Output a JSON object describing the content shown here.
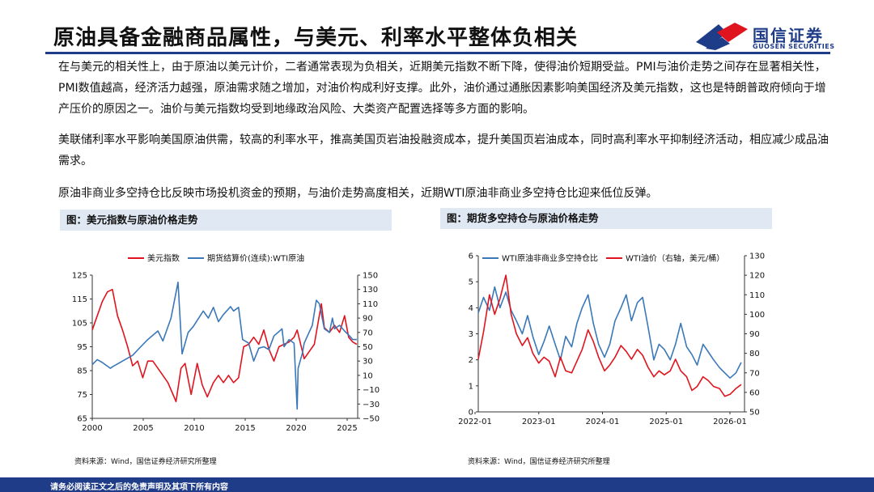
{
  "header": {
    "title": "原油具备金融商品属性，与美元、利率水平整体负相关"
  },
  "logo": {
    "cn": "国信证券",
    "en": "GUOSEN SECURITIES"
  },
  "body": {
    "p1": "在与美元的相关性上，由于原油以美元计价，二者通常表现为负相关，近期美元指数不断下降，使得油价短期受益。PMI与油价走势之间存在显著相关性，PMI数值越高，经济活力越强，原油需求随之增加，对油价构成利好支撑。此外，油价通过通胀因素影响美国经济及美元指数，这也是特朗普政府倾向于增产压价的原因之一。油价与美元指数均受到地缘政治风险、大类资产配置选择等多方面的影响。",
    "p2": "美联储利率水平影响美国原油供需，较高的利率水平，推高美国页岩油投融资成本，提升美国页岩油成本，同时高利率水平抑制经济活动，相应减少成品油需求。",
    "p3": "原油非商业多空持仓比反映市场投机资金的预期，与油价走势高度相关，近期WTI原油非商业多空持仓比迎来低位反弹。"
  },
  "footer": {
    "disclaimer": "请务必阅读正文之后的免责声明及其项下所有内容"
  },
  "colors": {
    "red": "#e0141e",
    "blue": "#3a78b8",
    "navy": "#1f3c88"
  },
  "chart_data": [
    {
      "type": "line",
      "caption": "图：美元指数与原油价格走势",
      "source": "资料来源：Wind，国信证券经济研究所整理",
      "x_ticks": [
        "2000",
        "2005",
        "2010",
        "2015",
        "2020",
        "2025"
      ],
      "xlim": [
        2000,
        2026.3
      ],
      "y_left": {
        "ticks": [
          "125",
          "115",
          "105",
          "95",
          "85",
          "75",
          "65"
        ],
        "ylim": [
          65,
          125
        ]
      },
      "y_right": {
        "ticks": [
          "150",
          "130",
          "110",
          "90",
          "70",
          "50",
          "30",
          "10",
          "−10",
          "−30",
          "−50"
        ],
        "ylim": [
          -50,
          150
        ]
      },
      "series": [
        {
          "name": "美元指数",
          "color": "#e0141e",
          "axis": "left",
          "points": [
            [
              2000,
              102
            ],
            [
              2000.5,
              108
            ],
            [
              2001,
              114
            ],
            [
              2001.5,
              118
            ],
            [
              2002,
              119
            ],
            [
              2002.5,
              108
            ],
            [
              2003,
              102
            ],
            [
              2003.5,
              95
            ],
            [
              2004,
              87
            ],
            [
              2004.5,
              89
            ],
            [
              2005,
              82
            ],
            [
              2005.5,
              89
            ],
            [
              2006,
              89
            ],
            [
              2006.5,
              86
            ],
            [
              2007,
              83
            ],
            [
              2007.5,
              80
            ],
            [
              2008,
              75
            ],
            [
              2008.3,
              72
            ],
            [
              2008.8,
              86
            ],
            [
              2009.2,
              88
            ],
            [
              2009.8,
              75
            ],
            [
              2010.4,
              88
            ],
            [
              2010.9,
              79
            ],
            [
              2011.4,
              74
            ],
            [
              2012,
              80
            ],
            [
              2012.5,
              83
            ],
            [
              2013,
              80
            ],
            [
              2013.5,
              83
            ],
            [
              2014,
              80
            ],
            [
              2014.5,
              82
            ],
            [
              2015,
              95
            ],
            [
              2015.5,
              96
            ],
            [
              2016,
              99
            ],
            [
              2016.5,
              96
            ],
            [
              2017,
              102
            ],
            [
              2017.5,
              94
            ],
            [
              2018,
              89
            ],
            [
              2018.5,
              95
            ],
            [
              2019,
              96
            ],
            [
              2019.5,
              97
            ],
            [
              2020,
              99
            ],
            [
              2020.3,
              102
            ],
            [
              2021,
              90
            ],
            [
              2021.5,
              93
            ],
            [
              2022,
              96
            ],
            [
              2022.7,
              113
            ],
            [
              2023,
              103
            ],
            [
              2023.5,
              101
            ],
            [
              2024,
              104
            ],
            [
              2024.5,
              101
            ],
            [
              2025,
              108
            ],
            [
              2025.4,
              99
            ],
            [
              2025.8,
              97
            ],
            [
              2026.2,
              96
            ]
          ]
        },
        {
          "name": "期货结算价(连续):WTI原油",
          "color": "#3a78b8",
          "axis": "right",
          "points": [
            [
              2000,
              25
            ],
            [
              2000.5,
              32
            ],
            [
              2001,
              28
            ],
            [
              2001.8,
              20
            ],
            [
              2002,
              22
            ],
            [
              2003,
              30
            ],
            [
              2004,
              38
            ],
            [
              2004.8,
              50
            ],
            [
              2005.5,
              60
            ],
            [
              2006.5,
              72
            ],
            [
              2007,
              58
            ],
            [
              2007.8,
              90
            ],
            [
              2008.5,
              140
            ],
            [
              2008.9,
              40
            ],
            [
              2009.5,
              70
            ],
            [
              2010,
              78
            ],
            [
              2011,
              100
            ],
            [
              2011.5,
              90
            ],
            [
              2012,
              105
            ],
            [
              2012.5,
              85
            ],
            [
              2013,
              95
            ],
            [
              2013.7,
              106
            ],
            [
              2014,
              100
            ],
            [
              2014.5,
              105
            ],
            [
              2014.9,
              60
            ],
            [
              2015.5,
              55
            ],
            [
              2016,
              30
            ],
            [
              2016.5,
              48
            ],
            [
              2017,
              50
            ],
            [
              2017.5,
              46
            ],
            [
              2018,
              65
            ],
            [
              2018.8,
              75
            ],
            [
              2019,
              50
            ],
            [
              2019.5,
              60
            ],
            [
              2020,
              55
            ],
            [
              2020.3,
              -37
            ],
            [
              2020.4,
              20
            ],
            [
              2020.8,
              40
            ],
            [
              2021,
              55
            ],
            [
              2021.8,
              80
            ],
            [
              2022.2,
              115
            ],
            [
              2022.5,
              110
            ],
            [
              2023,
              75
            ],
            [
              2023.5,
              70
            ],
            [
              2023.8,
              90
            ],
            [
              2024,
              75
            ],
            [
              2024.5,
              80
            ],
            [
              2025,
              72
            ],
            [
              2025.5,
              65
            ],
            [
              2025.8,
              60
            ],
            [
              2026.2,
              60
            ]
          ]
        }
      ]
    },
    {
      "type": "line",
      "caption": "图：期货多空持仓与原油价格走势",
      "source": "资料来源：Wind，国信证券经济研究所整理",
      "x_ticks": [
        "2022-01",
        "2023-01",
        "2024-01",
        "2025-01",
        "2026-01"
      ],
      "xlim": [
        2022.0,
        2026.05
      ],
      "y_left": {
        "ticks": [
          "6",
          "5",
          "4",
          "3",
          "2",
          "1",
          "0"
        ],
        "ylim": [
          0,
          6
        ]
      },
      "y_right": {
        "ticks": [
          "130",
          "120",
          "110",
          "100",
          "90",
          "80",
          "70",
          "60",
          "50"
        ],
        "ylim": [
          50,
          130
        ]
      },
      "series": [
        {
          "name": "WTI原油非商业多空持仓比",
          "color": "#3a78b8",
          "axis": "left",
          "points": [
            [
              2022.0,
              3.8
            ],
            [
              2022.08,
              4.4
            ],
            [
              2022.17,
              3.9
            ],
            [
              2022.25,
              4.8
            ],
            [
              2022.33,
              4.0
            ],
            [
              2022.42,
              4.6
            ],
            [
              2022.5,
              3.9
            ],
            [
              2022.58,
              3.5
            ],
            [
              2022.67,
              3.0
            ],
            [
              2022.75,
              3.7
            ],
            [
              2022.83,
              2.9
            ],
            [
              2022.92,
              2.2
            ],
            [
              2023.0,
              2.7
            ],
            [
              2023.08,
              3.3
            ],
            [
              2023.17,
              2.6
            ],
            [
              2023.25,
              2.0
            ],
            [
              2023.33,
              2.9
            ],
            [
              2023.42,
              2.5
            ],
            [
              2023.5,
              3.4
            ],
            [
              2023.58,
              4.0
            ],
            [
              2023.67,
              4.5
            ],
            [
              2023.75,
              3.4
            ],
            [
              2023.83,
              2.6
            ],
            [
              2023.92,
              2.1
            ],
            [
              2024.0,
              2.6
            ],
            [
              2024.08,
              3.5
            ],
            [
              2024.17,
              4.0
            ],
            [
              2024.25,
              4.5
            ],
            [
              2024.33,
              3.5
            ],
            [
              2024.42,
              4.2
            ],
            [
              2024.5,
              4.4
            ],
            [
              2024.58,
              3.3
            ],
            [
              2024.67,
              2.0
            ],
            [
              2024.75,
              2.6
            ],
            [
              2024.83,
              2.4
            ],
            [
              2024.92,
              2.0
            ],
            [
              2025.0,
              2.6
            ],
            [
              2025.08,
              3.4
            ],
            [
              2025.17,
              2.5
            ],
            [
              2025.25,
              2.2
            ],
            [
              2025.33,
              1.8
            ],
            [
              2025.42,
              2.6
            ],
            [
              2025.5,
              2.3
            ],
            [
              2025.58,
              2.0
            ],
            [
              2025.67,
              1.7
            ],
            [
              2025.75,
              1.5
            ],
            [
              2025.83,
              1.3
            ],
            [
              2025.92,
              1.5
            ],
            [
              2026.0,
              1.9
            ]
          ]
        },
        {
          "name": "WTI油价（右轴，美元/桶）",
          "color": "#e0141e",
          "axis": "right",
          "points": [
            [
              2022.0,
              77
            ],
            [
              2022.08,
              91
            ],
            [
              2022.17,
              110
            ],
            [
              2022.25,
              100
            ],
            [
              2022.33,
              108
            ],
            [
              2022.42,
              120
            ],
            [
              2022.5,
              100
            ],
            [
              2022.58,
              90
            ],
            [
              2022.67,
              84
            ],
            [
              2022.75,
              88
            ],
            [
              2022.83,
              80
            ],
            [
              2022.92,
              75
            ],
            [
              2023.0,
              78
            ],
            [
              2023.08,
              76
            ],
            [
              2023.17,
              68
            ],
            [
              2023.25,
              78
            ],
            [
              2023.33,
              71
            ],
            [
              2023.42,
              70
            ],
            [
              2023.5,
              76
            ],
            [
              2023.58,
              82
            ],
            [
              2023.67,
              92
            ],
            [
              2023.75,
              86
            ],
            [
              2023.83,
              78
            ],
            [
              2023.92,
              71
            ],
            [
              2024.0,
              74
            ],
            [
              2024.08,
              78
            ],
            [
              2024.17,
              84
            ],
            [
              2024.25,
              81
            ],
            [
              2024.33,
              77
            ],
            [
              2024.42,
              82
            ],
            [
              2024.5,
              79
            ],
            [
              2024.58,
              73
            ],
            [
              2024.67,
              68
            ],
            [
              2024.75,
              71
            ],
            [
              2024.83,
              69
            ],
            [
              2024.92,
              71
            ],
            [
              2025.0,
              77
            ],
            [
              2025.08,
              71
            ],
            [
              2025.17,
              68
            ],
            [
              2025.25,
              61
            ],
            [
              2025.33,
              63
            ],
            [
              2025.42,
              68
            ],
            [
              2025.5,
              66
            ],
            [
              2025.58,
              63
            ],
            [
              2025.67,
              62
            ],
            [
              2025.75,
              58
            ],
            [
              2025.83,
              59
            ],
            [
              2025.92,
              62
            ],
            [
              2026.0,
              64
            ]
          ]
        }
      ]
    }
  ]
}
